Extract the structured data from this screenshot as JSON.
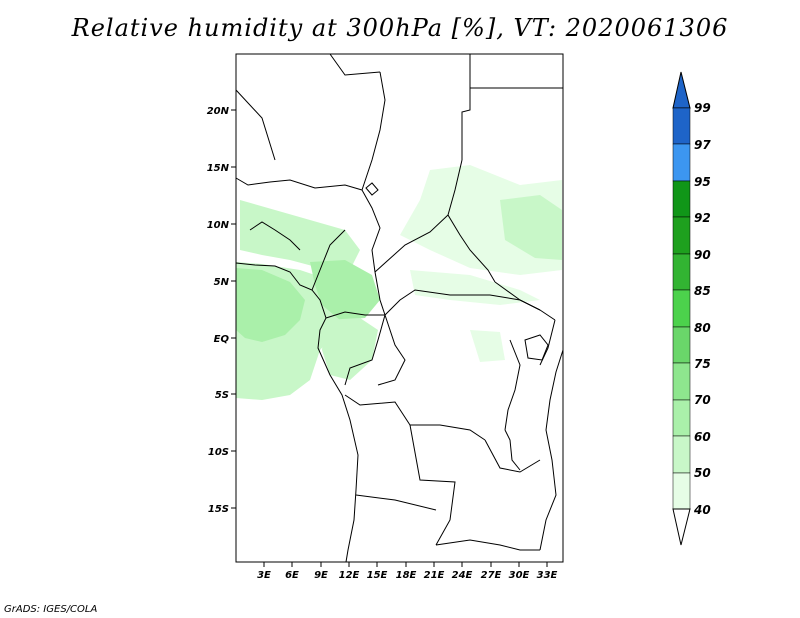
{
  "title": "Relative humidity at 300hPa [%], VT: 2020061306",
  "credit": "GrADS: IGES/COLA",
  "map": {
    "lat_ticks": [
      "20N",
      "15N",
      "10N",
      "5N",
      "EQ",
      "5S",
      "10S",
      "15S"
    ],
    "lon_ticks": [
      "3E",
      "6E",
      "9E",
      "12E",
      "15E",
      "18E",
      "21E",
      "24E",
      "27E",
      "30E",
      "33E"
    ]
  },
  "colorbar": {
    "labels": [
      "99",
      "97",
      "95",
      "92",
      "90",
      "85",
      "80",
      "75",
      "70",
      "60",
      "50",
      "40"
    ],
    "colors": [
      "#1e64c8",
      "#2878dc",
      "#3c96f0",
      "#109618",
      "#1ea01e",
      "#32b432",
      "#4cd24c",
      "#6ad66a",
      "#8ee68e",
      "#aaf0aa",
      "#c8f7c8",
      "#e6fde6"
    ]
  },
  "field_colors": {
    "humidity_40_50": "#e6fde6",
    "humidity_50_60": "#c8f7c8",
    "humidity_60_70": "#aaf0aa"
  }
}
